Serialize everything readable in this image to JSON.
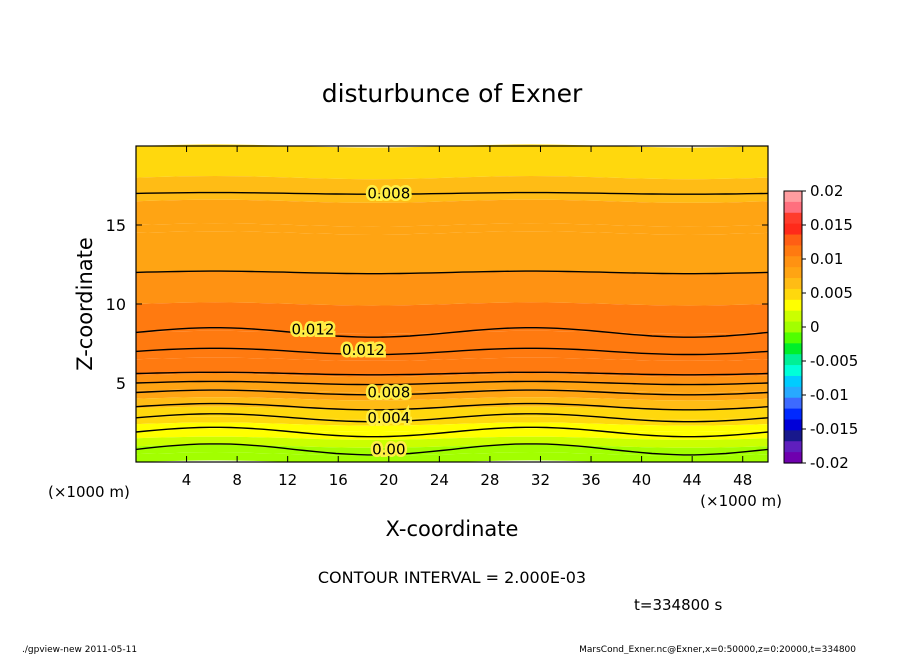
{
  "chart_data": {
    "type": "heatmap",
    "title": "disturbunce of Exner",
    "xlabel": "X-coordinate",
    "ylabel": "Z-coordinate",
    "x_unit": "(×1000 m)",
    "xlim": [
      0,
      50
    ],
    "ylim": [
      0,
      20
    ],
    "x_ticks": [
      4,
      8,
      12,
      16,
      20,
      24,
      28,
      32,
      36,
      40,
      44,
      48
    ],
    "y_ticks": [
      5,
      10,
      15
    ],
    "grid": false,
    "colorbar": {
      "placement": "right",
      "range": [
        -0.02,
        0.02
      ],
      "tick_labels": [
        "0.02",
        "0.015",
        "0.01",
        "0.005",
        "0",
        "-0.005",
        "-0.01",
        "-0.015",
        "-0.02"
      ],
      "colors": [
        "#ff9da0",
        "#ff6f7e",
        "#ff3c2c",
        "#ff2a1a",
        "#ff5e14",
        "#ff7a10",
        "#ff9212",
        "#ffa413",
        "#ffbc15",
        "#ffd80d",
        "#ffff00",
        "#cbff00",
        "#a2ff00",
        "#51ff00",
        "#00ef2a",
        "#00f096",
        "#00ffd9",
        "#00ccff",
        "#28a9ff",
        "#3d6aff",
        "#0029ff",
        "#0000d8",
        "#18188c",
        "#5f1fbd",
        "#6f00ae"
      ]
    },
    "contour_interval_text": "CONTOUR INTERVAL = 2.000E-03",
    "time_text": "t=334800 s",
    "contour_labels": [
      {
        "text": "0.008",
        "x": 20,
        "z": 17.0
      },
      {
        "text": "0.012",
        "x": 14,
        "z": 8.4
      },
      {
        "text": "0.012",
        "x": 18,
        "z": 7.1
      },
      {
        "text": "0.008",
        "x": 20,
        "z": 4.4
      },
      {
        "text": "0.004",
        "x": 20,
        "z": 2.8
      },
      {
        "text": "0.00",
        "x": 20,
        "z": 0.8
      }
    ],
    "bands": [
      {
        "z_top": 20.0,
        "value": 0.0055
      },
      {
        "z_top": 18.0,
        "value": 0.0065
      },
      {
        "z_top": 16.5,
        "value": 0.0073
      },
      {
        "z_top": 15.0,
        "value": 0.0081
      },
      {
        "z_top": 14.5,
        "value": 0.0085
      },
      {
        "z_top": 12.0,
        "value": 0.0095
      },
      {
        "z_top": 10.0,
        "value": 0.0105
      },
      {
        "z_top": 8.2,
        "value": 0.012
      },
      {
        "z_top": 6.5,
        "value": 0.0105
      },
      {
        "z_top": 5.5,
        "value": 0.0093
      },
      {
        "z_top": 5.0,
        "value": 0.0087
      },
      {
        "z_top": 4.5,
        "value": 0.0078
      },
      {
        "z_top": 4.0,
        "value": 0.0066
      },
      {
        "z_top": 3.4,
        "value": 0.0056
      },
      {
        "z_top": 2.8,
        "value": 0.0045
      },
      {
        "z_top": 2.4,
        "value": 0.0035
      },
      {
        "z_top": 2.0,
        "value": 0.0025
      },
      {
        "z_top": 1.5,
        "value": 0.0015
      },
      {
        "z_top": 1.0,
        "value": 0.0005
      },
      {
        "z_top": 0.5,
        "value": -0.0002
      }
    ],
    "contours": [
      {
        "value": 0.008,
        "z": 17.0,
        "amp": 0.05
      },
      {
        "value": 0.01,
        "z": 12.0,
        "amp": 0.08
      },
      {
        "value": 0.012,
        "z": 8.2,
        "amp": 0.3
      },
      {
        "value": 0.012,
        "z": 7.0,
        "amp": 0.2
      },
      {
        "value": 0.01,
        "z": 5.6,
        "amp": 0.08
      },
      {
        "value": 0.009,
        "z": 5.0,
        "amp": 0.1
      },
      {
        "value": 0.008,
        "z": 4.4,
        "amp": 0.15
      },
      {
        "value": 0.006,
        "z": 3.5,
        "amp": 0.2
      },
      {
        "value": 0.004,
        "z": 2.8,
        "amp": 0.25
      },
      {
        "value": 0.002,
        "z": 1.9,
        "amp": 0.3
      },
      {
        "value": 0.0,
        "z": 0.8,
        "amp": 0.35
      }
    ]
  },
  "footer": {
    "left": "./gpview-new   2011-05-11",
    "right": "MarsCond_Exner.nc@Exner,x=0:50000,z=0:20000,t=334800"
  }
}
